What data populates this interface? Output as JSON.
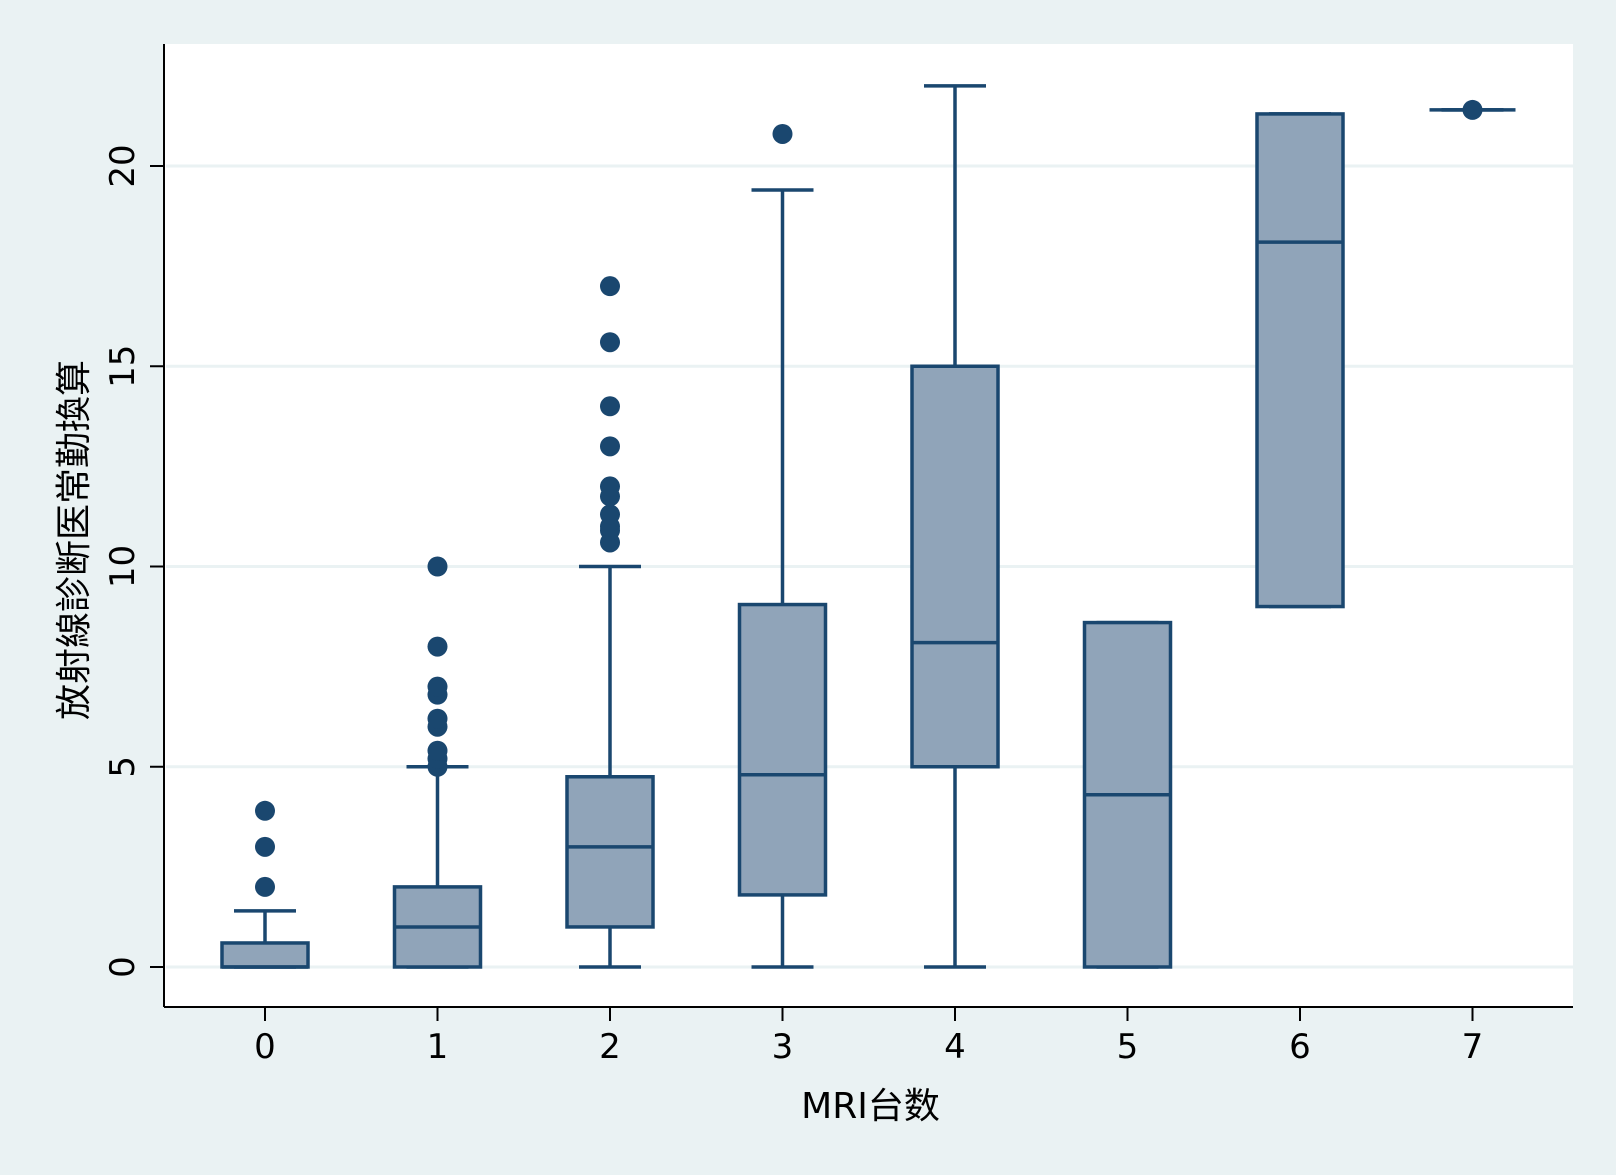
{
  "chart_data": {
    "type": "box",
    "xlabel": "MRI台数",
    "ylabel": "放射線診断医常勤換算",
    "categories": [
      "0",
      "1",
      "2",
      "3",
      "4",
      "5",
      "6",
      "7"
    ],
    "yticks": [
      0,
      5,
      10,
      15,
      20
    ],
    "ylim": [
      -1,
      23.0
    ],
    "grid": true,
    "colors": {
      "box_fill": "#90a4b9",
      "box_stroke": "#1a476f",
      "grid": "#eaf2f3",
      "plot_bg": "#ffffff",
      "outer_bg": "#eaf2f3"
    },
    "boxes": [
      {
        "category": "0",
        "whisker_low": 0,
        "q1": 0,
        "median": 0,
        "q3": 0.6,
        "whisker_high": 1.4,
        "outliers": [
          2,
          3,
          3.9
        ]
      },
      {
        "category": "1",
        "whisker_low": 0,
        "q1": 0,
        "median": 1,
        "q3": 2,
        "whisker_high": 5,
        "outliers": [
          5,
          5.2,
          5.4,
          6,
          6.2,
          6.8,
          7,
          8,
          10
        ]
      },
      {
        "category": "2",
        "whisker_low": 0,
        "q1": 1,
        "median": 3,
        "q3": 4.75,
        "whisker_high": 10,
        "outliers": [
          10.6,
          10.9,
          11.0,
          11.3,
          11.75,
          12,
          13,
          14,
          15.6,
          17
        ]
      },
      {
        "category": "3",
        "whisker_low": 0,
        "q1": 1.8,
        "median": 4.8,
        "q3": 9.05,
        "whisker_high": 19.4,
        "outliers": [
          20.8
        ]
      },
      {
        "category": "4",
        "whisker_low": 0,
        "q1": 5,
        "median": 8.1,
        "q3": 15,
        "whisker_high": 22,
        "outliers": []
      },
      {
        "category": "5",
        "whisker_low": 0,
        "q1": 0,
        "median": 4.3,
        "q3": 8.6,
        "whisker_high": 8.6,
        "outliers": []
      },
      {
        "category": "6",
        "whisker_low": 9,
        "q1": 9,
        "median": 18.1,
        "q3": 21.3,
        "whisker_high": 21.3,
        "outliers": []
      },
      {
        "category": "7",
        "whisker_low": 21.4,
        "q1": 21.4,
        "median": 21.4,
        "q3": 21.4,
        "whisker_high": 21.4,
        "outliers": [
          21.4
        ]
      }
    ]
  }
}
